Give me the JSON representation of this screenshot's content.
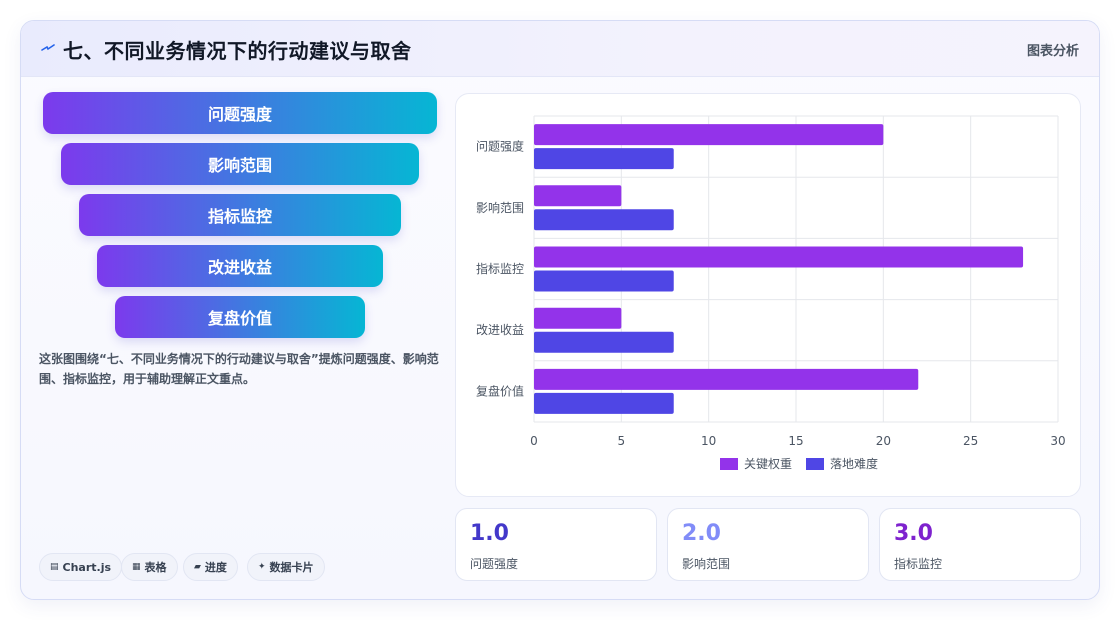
{
  "header": {
    "title": "七、不同业务情况下的行动建议与取舍",
    "right_label": "图表分析"
  },
  "funnel": {
    "items": [
      "问题强度",
      "影响范围",
      "指标监控",
      "改进收益",
      "复盘价值"
    ],
    "gradient": [
      "#7c3aed",
      "#06b6d4"
    ]
  },
  "description": "这张图围绕“七、不同业务情况下的行动建议与取舍”提炼问题强度、影响范围、指标监控，用于辅助理解正文重点。",
  "tags": [
    {
      "icon": "chart-icon",
      "glyph": "▤",
      "label": "Chart.js"
    },
    {
      "icon": "table-icon",
      "glyph": "▦",
      "label": "表格"
    },
    {
      "icon": "progress-icon",
      "glyph": "▰",
      "label": "进度"
    },
    {
      "icon": "sparkle-icon",
      "glyph": "✦",
      "label": "数据卡片"
    }
  ],
  "stats": [
    {
      "value": "1.0",
      "label": "问题强度",
      "color": "#4338ca"
    },
    {
      "value": "2.0",
      "label": "影响范围",
      "color": "#818cf8"
    },
    {
      "value": "3.0",
      "label": "指标监控",
      "color": "#7e22ce"
    }
  ],
  "chart_data": {
    "type": "bar",
    "orientation": "horizontal",
    "categories": [
      "问题强度",
      "影响范围",
      "指标监控",
      "改进收益",
      "复盘价值"
    ],
    "series": [
      {
        "name": "关键权重",
        "values": [
          20,
          5,
          28,
          5,
          22
        ],
        "color": "#9333ea"
      },
      {
        "name": "落地难度",
        "values": [
          8,
          8,
          8,
          8,
          8
        ],
        "color": "#4f46e5"
      }
    ],
    "xlim": [
      0,
      30
    ],
    "xticks": [
      0,
      5,
      10,
      15,
      20,
      25,
      30
    ],
    "grid": true,
    "legend": "bottom"
  }
}
